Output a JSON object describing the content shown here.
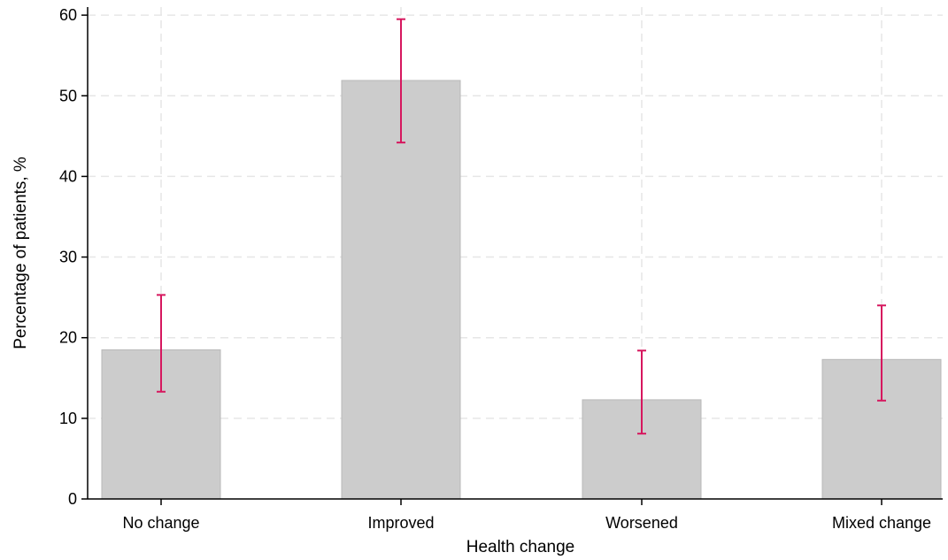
{
  "chart_data": {
    "type": "bar",
    "title": "",
    "xlabel": "Health change",
    "ylabel": "Percentage of patients, %",
    "categories": [
      "No change",
      "Improved",
      "Worsened",
      "Mixed change"
    ],
    "values": [
      18.5,
      51.9,
      12.3,
      17.3
    ],
    "error_bars": {
      "lower": [
        13.3,
        44.2,
        8.1,
        12.2
      ],
      "upper": [
        25.3,
        59.5,
        18.4,
        24.0
      ]
    },
    "ylim": [
      0,
      61
    ],
    "yticks": [
      0,
      10,
      20,
      30,
      40,
      50,
      60
    ],
    "grid": true,
    "legend": "none",
    "colors": {
      "bar_fill": "#cccccc",
      "bar_stroke": "#b8b8b8",
      "error_bar": "#d6175e",
      "grid": "#e6e6e6",
      "axis": "#000000"
    }
  }
}
